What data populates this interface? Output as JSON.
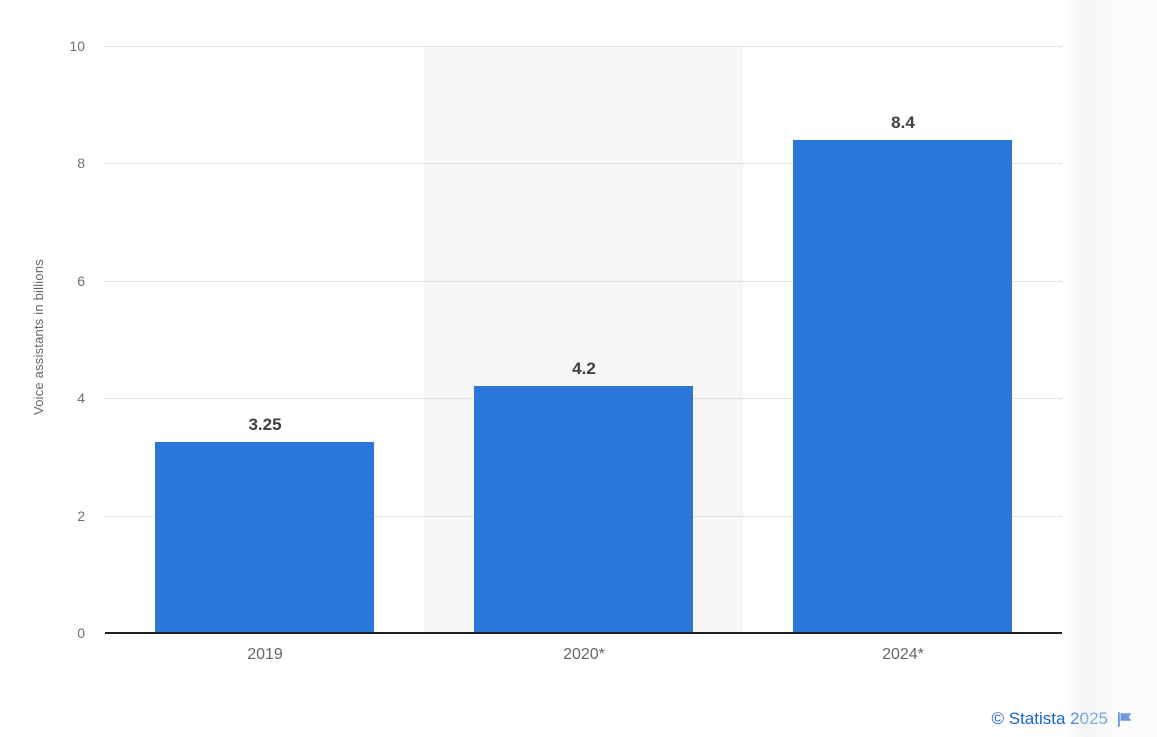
{
  "chart_data": {
    "type": "bar",
    "categories": [
      "2019",
      "2020*",
      "2024*"
    ],
    "values": [
      3.25,
      4.2,
      8.4
    ],
    "value_labels": [
      "3.25",
      "4.2",
      "8.4"
    ],
    "title": "",
    "xlabel": "",
    "ylabel": "Voice assistants in billions",
    "ylim": [
      0,
      10
    ],
    "yticks": [
      0,
      2,
      4,
      6,
      8,
      10
    ],
    "grid": "horizontal-dotted",
    "legend": "none",
    "highlight_band_category_index": 1
  },
  "colors": {
    "bar": "#2a76d9",
    "plot_band": "#f7f7f7",
    "gridline": "#cccccc",
    "axis_line": "#1f1f1f",
    "y_tick_label": "#707070",
    "x_tick_label": "#666666",
    "value_label": "#404040",
    "y_axis_title": "#666666",
    "attribution": "#1a63cc"
  },
  "attribution": {
    "text": "© Statista 2025",
    "icon": "flag-icon"
  }
}
